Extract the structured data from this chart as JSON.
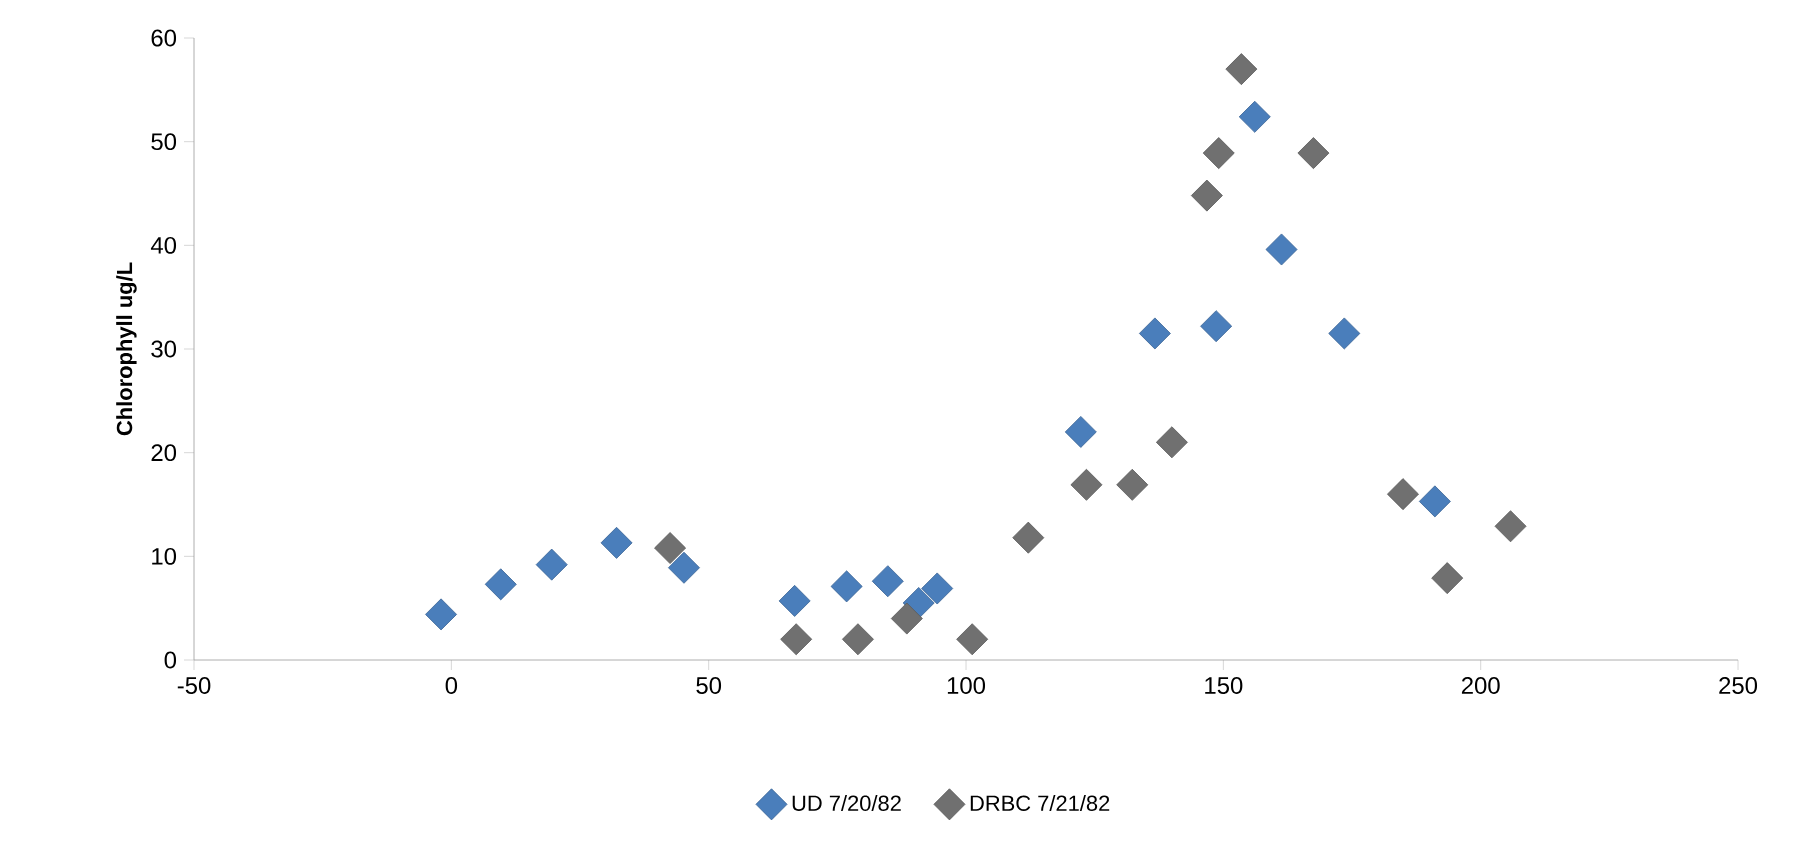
{
  "chart_data": {
    "type": "scatter",
    "ylabel": "Chlorophyll ug/L",
    "xlim": [
      -50,
      250
    ],
    "xticks": [
      -50,
      0,
      50,
      100,
      150,
      200,
      250
    ],
    "ylim": [
      0,
      60
    ],
    "yticks": [
      0,
      10,
      20,
      30,
      40,
      50,
      60
    ],
    "grid": false,
    "legend": "bottom",
    "marker": "diamond",
    "series": [
      {
        "name": "UD 7/20/82",
        "color": "#4a7ebb",
        "x": [
          -2,
          9.6,
          19.5,
          32.1,
          45.2,
          66.7,
          76.8,
          84.8,
          90.8,
          94.4,
          122.3,
          136.7,
          148.6,
          156.1,
          161.3,
          173.5,
          191.1
        ],
        "values": [
          4.4,
          7.3,
          9.2,
          11.3,
          8.9,
          5.7,
          7.1,
          7.6,
          5.5,
          6.9,
          22.0,
          31.5,
          32.2,
          52.4,
          39.6,
          31.5,
          15.3
        ]
      },
      {
        "name": "DRBC 7/21/82",
        "color": "#707070",
        "x": [
          42.5,
          67.0,
          79.0,
          88.5,
          101.2,
          112.1,
          123.4,
          132.3,
          140.0,
          146.8,
          149.1,
          153.5,
          167.5,
          184.9,
          193.5,
          205.8
        ],
        "values": [
          10.8,
          2,
          2,
          4.0,
          2,
          11.8,
          16.9,
          16.9,
          21.0,
          44.8,
          48.9,
          57.0,
          48.9,
          16.0,
          7.9,
          12.9
        ]
      }
    ]
  }
}
